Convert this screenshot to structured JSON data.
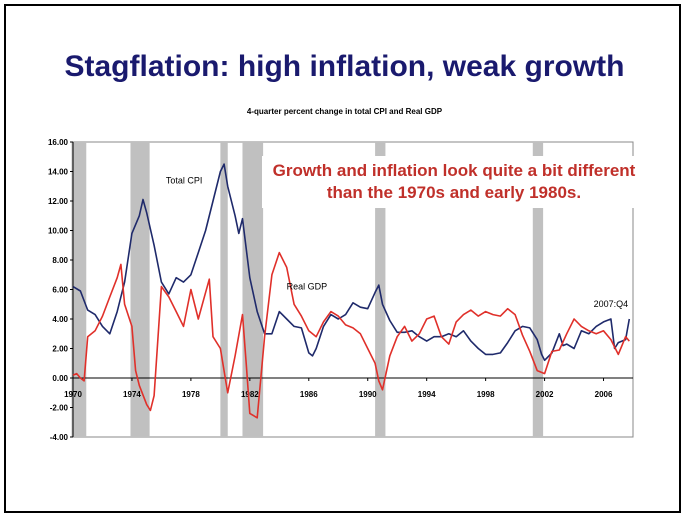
{
  "slide": {
    "title": "Stagflation: high inflation, weak growth"
  },
  "annotation": {
    "text": "Growth and inflation look quite a bit different than the 1970s and early 1980s."
  },
  "chart_data": {
    "type": "line",
    "title": "4-quarter percent change in total CPI and Real GDP",
    "xlabel": "",
    "ylabel": "",
    "ylim": [
      -4,
      16
    ],
    "xlim": [
      1970,
      2008
    ],
    "y_ticks": [
      "16.00",
      "14.00",
      "12.00",
      "10.00",
      "8.00",
      "6.00",
      "4.00",
      "2.00",
      "0.00",
      "-2.00",
      "-4.00"
    ],
    "x_ticks": [
      "1970",
      "1974",
      "1978",
      "1982",
      "1986",
      "1990",
      "1994",
      "1998",
      "2002",
      "2006"
    ],
    "grid": false,
    "recessions": [
      [
        1969.9,
        1970.9
      ],
      [
        1973.9,
        1975.2
      ],
      [
        1980.0,
        1980.5
      ],
      [
        1981.5,
        1982.9
      ],
      [
        1990.5,
        1991.2
      ],
      [
        2001.2,
        2001.9
      ]
    ],
    "colors": {
      "cpi": "#1f2a6b",
      "gdp": "#e0302a",
      "recession": "#c0c0c0",
      "title": "#1a1a6e",
      "annotation": "#c0302a"
    },
    "series": [
      {
        "name": "Total CPI",
        "points": [
          [
            1970.0,
            6.2
          ],
          [
            1970.5,
            5.9
          ],
          [
            1971.0,
            4.6
          ],
          [
            1971.5,
            4.3
          ],
          [
            1972.0,
            3.5
          ],
          [
            1972.5,
            3.0
          ],
          [
            1973.0,
            4.5
          ],
          [
            1973.5,
            6.5
          ],
          [
            1974.0,
            9.8
          ],
          [
            1974.5,
            11.0
          ],
          [
            1974.75,
            12.1
          ],
          [
            1975.0,
            11.2
          ],
          [
            1975.5,
            9.0
          ],
          [
            1976.0,
            6.5
          ],
          [
            1976.5,
            5.7
          ],
          [
            1977.0,
            6.8
          ],
          [
            1977.5,
            6.5
          ],
          [
            1978.0,
            7.0
          ],
          [
            1978.5,
            8.5
          ],
          [
            1979.0,
            10.0
          ],
          [
            1979.5,
            12.0
          ],
          [
            1980.0,
            14.0
          ],
          [
            1980.25,
            14.5
          ],
          [
            1980.5,
            13.0
          ],
          [
            1981.0,
            11.0
          ],
          [
            1981.25,
            9.8
          ],
          [
            1981.5,
            10.8
          ],
          [
            1982.0,
            6.8
          ],
          [
            1982.5,
            4.5
          ],
          [
            1983.0,
            3.0
          ],
          [
            1983.5,
            3.0
          ],
          [
            1984.0,
            4.5
          ],
          [
            1984.5,
            4.0
          ],
          [
            1985.0,
            3.5
          ],
          [
            1985.5,
            3.4
          ],
          [
            1986.0,
            1.7
          ],
          [
            1986.25,
            1.5
          ],
          [
            1986.5,
            2.0
          ],
          [
            1987.0,
            3.5
          ],
          [
            1987.5,
            4.3
          ],
          [
            1988.0,
            4.0
          ],
          [
            1988.5,
            4.3
          ],
          [
            1989.0,
            5.1
          ],
          [
            1989.5,
            4.8
          ],
          [
            1990.0,
            4.7
          ],
          [
            1990.5,
            5.8
          ],
          [
            1990.75,
            6.3
          ],
          [
            1991.0,
            5.0
          ],
          [
            1991.5,
            3.9
          ],
          [
            1992.0,
            3.1
          ],
          [
            1992.5,
            3.1
          ],
          [
            1993.0,
            3.2
          ],
          [
            1993.5,
            2.8
          ],
          [
            1994.0,
            2.5
          ],
          [
            1994.5,
            2.8
          ],
          [
            1995.0,
            2.8
          ],
          [
            1995.5,
            3.0
          ],
          [
            1996.0,
            2.8
          ],
          [
            1996.5,
            3.2
          ],
          [
            1997.0,
            2.5
          ],
          [
            1997.5,
            2.0
          ],
          [
            1998.0,
            1.6
          ],
          [
            1998.5,
            1.6
          ],
          [
            1999.0,
            1.7
          ],
          [
            1999.5,
            2.4
          ],
          [
            2000.0,
            3.2
          ],
          [
            2000.5,
            3.5
          ],
          [
            2001.0,
            3.4
          ],
          [
            2001.5,
            2.6
          ],
          [
            2001.8,
            1.6
          ],
          [
            2002.0,
            1.2
          ],
          [
            2002.5,
            1.7
          ],
          [
            2003.0,
            3.0
          ],
          [
            2003.25,
            2.2
          ],
          [
            2003.5,
            2.3
          ],
          [
            2004.0,
            2.0
          ],
          [
            2004.5,
            3.2
          ],
          [
            2005.0,
            3.0
          ],
          [
            2005.5,
            3.5
          ],
          [
            2006.0,
            3.8
          ],
          [
            2006.5,
            4.0
          ],
          [
            2006.75,
            2.0
          ],
          [
            2007.0,
            2.4
          ],
          [
            2007.5,
            2.6
          ],
          [
            2007.75,
            4.0
          ]
        ]
      },
      {
        "name": "Real GDP",
        "points": [
          [
            1970.0,
            0.2
          ],
          [
            1970.25,
            0.3
          ],
          [
            1970.5,
            0.0
          ],
          [
            1970.75,
            -0.2
          ],
          [
            1971.0,
            2.8
          ],
          [
            1971.5,
            3.2
          ],
          [
            1972.0,
            4.2
          ],
          [
            1972.5,
            5.5
          ],
          [
            1973.0,
            6.8
          ],
          [
            1973.25,
            7.7
          ],
          [
            1973.5,
            5.0
          ],
          [
            1974.0,
            3.5
          ],
          [
            1974.25,
            0.5
          ],
          [
            1974.5,
            -0.5
          ],
          [
            1975.0,
            -1.8
          ],
          [
            1975.25,
            -2.2
          ],
          [
            1975.5,
            -1.2
          ],
          [
            1976.0,
            6.2
          ],
          [
            1976.5,
            5.5
          ],
          [
            1977.0,
            4.5
          ],
          [
            1977.5,
            3.5
          ],
          [
            1978.0,
            6.0
          ],
          [
            1978.5,
            4.0
          ],
          [
            1979.0,
            5.8
          ],
          [
            1979.25,
            6.7
          ],
          [
            1979.5,
            2.8
          ],
          [
            1980.0,
            2.0
          ],
          [
            1980.5,
            -1.0
          ],
          [
            1981.0,
            1.5
          ],
          [
            1981.5,
            4.3
          ],
          [
            1981.75,
            1.0
          ],
          [
            1982.0,
            -2.4
          ],
          [
            1982.5,
            -2.7
          ],
          [
            1983.0,
            2.8
          ],
          [
            1983.5,
            7.0
          ],
          [
            1984.0,
            8.5
          ],
          [
            1984.5,
            7.5
          ],
          [
            1985.0,
            5.0
          ],
          [
            1985.5,
            4.2
          ],
          [
            1986.0,
            3.2
          ],
          [
            1986.5,
            2.8
          ],
          [
            1987.0,
            3.8
          ],
          [
            1987.5,
            4.5
          ],
          [
            1988.0,
            4.2
          ],
          [
            1988.5,
            3.6
          ],
          [
            1989.0,
            3.4
          ],
          [
            1989.5,
            3.0
          ],
          [
            1990.0,
            2.0
          ],
          [
            1990.5,
            1.0
          ],
          [
            1990.75,
            -0.2
          ],
          [
            1991.0,
            -0.8
          ],
          [
            1991.5,
            1.5
          ],
          [
            1992.0,
            2.8
          ],
          [
            1992.5,
            3.5
          ],
          [
            1993.0,
            2.5
          ],
          [
            1993.5,
            3.0
          ],
          [
            1994.0,
            4.0
          ],
          [
            1994.5,
            4.2
          ],
          [
            1995.0,
            2.8
          ],
          [
            1995.5,
            2.3
          ],
          [
            1996.0,
            3.8
          ],
          [
            1996.5,
            4.3
          ],
          [
            1997.0,
            4.6
          ],
          [
            1997.5,
            4.2
          ],
          [
            1998.0,
            4.5
          ],
          [
            1998.5,
            4.3
          ],
          [
            1999.0,
            4.2
          ],
          [
            1999.5,
            4.7
          ],
          [
            2000.0,
            4.3
          ],
          [
            2000.5,
            2.9
          ],
          [
            2001.0,
            1.8
          ],
          [
            2001.5,
            0.5
          ],
          [
            2002.0,
            0.3
          ],
          [
            2002.5,
            1.8
          ],
          [
            2003.0,
            1.9
          ],
          [
            2003.5,
            3.0
          ],
          [
            2004.0,
            4.0
          ],
          [
            2004.5,
            3.5
          ],
          [
            2005.0,
            3.2
          ],
          [
            2005.5,
            3.0
          ],
          [
            2006.0,
            3.2
          ],
          [
            2006.5,
            2.6
          ],
          [
            2007.0,
            1.6
          ],
          [
            2007.5,
            2.8
          ],
          [
            2007.75,
            2.5
          ]
        ]
      }
    ],
    "series_labels": [
      {
        "text": "Total CPI",
        "x": 1976.3,
        "y": 13.2
      },
      {
        "text": "Real GDP",
        "x": 1984.5,
        "y": 6.0
      }
    ],
    "annotations": [
      {
        "text": "2007:Q4",
        "x": 2006.5,
        "y": 4.8
      }
    ]
  }
}
